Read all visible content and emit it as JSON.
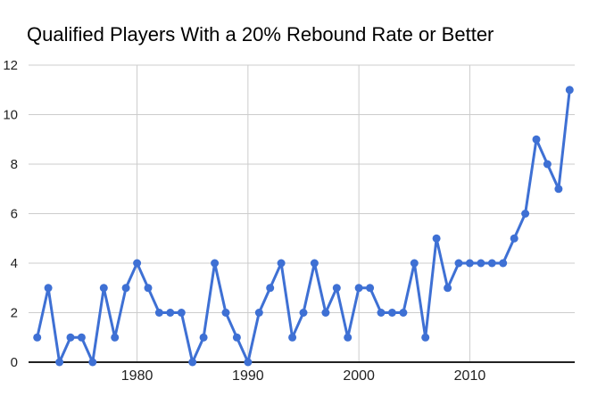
{
  "chart_data": {
    "type": "line",
    "title": "Qualified Players With a 20% Rebound Rate or Better",
    "x": [
      1971,
      1972,
      1973,
      1974,
      1975,
      1976,
      1977,
      1978,
      1979,
      1980,
      1981,
      1982,
      1983,
      1984,
      1985,
      1986,
      1987,
      1988,
      1989,
      1990,
      1991,
      1992,
      1993,
      1994,
      1995,
      1996,
      1997,
      1998,
      1999,
      2000,
      2001,
      2002,
      2003,
      2004,
      2005,
      2006,
      2007,
      2008,
      2009,
      2010,
      2011,
      2012,
      2013,
      2014,
      2015,
      2016,
      2017,
      2018,
      2019
    ],
    "values": [
      1,
      3,
      0,
      1,
      1,
      0,
      3,
      1,
      3,
      4,
      3,
      2,
      2,
      2,
      0,
      1,
      4,
      2,
      1,
      0,
      2,
      3,
      4,
      1,
      2,
      4,
      2,
      3,
      1,
      3,
      3,
      2,
      2,
      2,
      4,
      1,
      5,
      3,
      4,
      4,
      4,
      4,
      4,
      5,
      6,
      9,
      8,
      7,
      11
    ],
    "xlabel": "",
    "ylabel": "",
    "ylim": [
      0,
      12
    ],
    "y_ticks": [
      0,
      2,
      4,
      6,
      8,
      10,
      12
    ],
    "x_tick_years": [
      1980,
      1990,
      2000,
      2010
    ],
    "x_tick_labels": [
      "1980",
      "1990",
      "2000",
      "2010"
    ],
    "grid": true,
    "legend": "none",
    "colors": {
      "line": "#3e70d4",
      "point": "#3e70d4",
      "grid": "#cccccc",
      "axis": "#212121",
      "tick_label": "#212121",
      "title": "#000000",
      "background": "#ffffff"
    },
    "style": {
      "line_width": 3,
      "point_radius": 4.5
    }
  }
}
